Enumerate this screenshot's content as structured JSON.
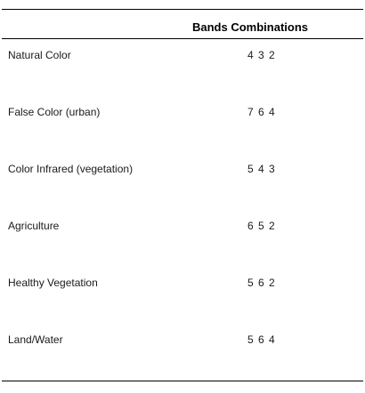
{
  "table": {
    "header": {
      "name_column": "",
      "value_column": "Bands Combinations"
    },
    "rows": [
      {
        "name": "Natural Color",
        "bands": "4 3 2"
      },
      {
        "name": "False Color (urban)",
        "bands": "7 6 4"
      },
      {
        "name": "Color Infrared (vegetation)",
        "bands": "5 4 3"
      },
      {
        "name": "Agriculture",
        "bands": "6 5 2"
      },
      {
        "name": "Healthy Vegetation",
        "bands": "5 6 2"
      },
      {
        "name": "Land/Water",
        "bands": "5 6 4"
      }
    ]
  }
}
